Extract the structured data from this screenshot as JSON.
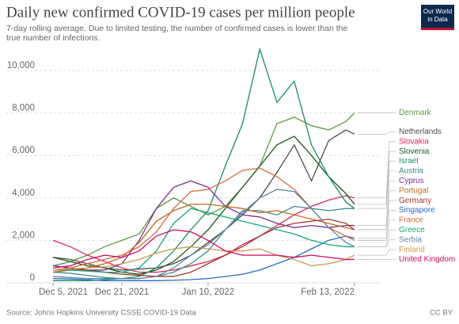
{
  "chart_data": {
    "type": "line",
    "title": "Daily new confirmed COVID-19 cases per million people",
    "subtitle": "7-day rolling average. Due to limited testing, the number of confirmed cases is lower than the true number of infections.",
    "source": "Source: Johns Hopkins University CSSE COVID-19 Data",
    "license": "CC BY",
    "logo": [
      "Our World",
      "in Data"
    ],
    "x": [
      "2021-12-05",
      "2021-12-09",
      "2021-12-13",
      "2021-12-17",
      "2021-12-21",
      "2021-12-25",
      "2021-12-29",
      "2022-01-02",
      "2022-01-06",
      "2022-01-10",
      "2022-01-14",
      "2022-01-18",
      "2022-01-22",
      "2022-01-26",
      "2022-01-30",
      "2022-02-03",
      "2022-02-07",
      "2022-02-11",
      "2022-02-13"
    ],
    "xticks": [
      {
        "value": "2021-12-05",
        "label": "Dec 5, 2021"
      },
      {
        "value": "2021-12-21",
        "label": "Dec 21, 2021"
      },
      {
        "value": "2022-01-10",
        "label": "Jan 10, 2022"
      },
      {
        "value": "2022-02-13",
        "label": "Feb 13, 2022"
      }
    ],
    "ylim": [
      0,
      10000
    ],
    "yticks": [
      0,
      {
        "value": 2000,
        "label": "2,000"
      },
      {
        "value": 4000,
        "label": "4,000"
      },
      {
        "value": 6000,
        "label": "6,000"
      },
      {
        "value": 8000,
        "label": "8,000"
      },
      {
        "value": 10000,
        "label": "10,000"
      }
    ],
    "grid": true,
    "series": [
      {
        "name": "Denmark",
        "color": "#5b9a3e",
        "values": [
          800,
          1000,
          1300,
          1700,
          2000,
          2300,
          3500,
          4000,
          3600,
          3200,
          3600,
          4500,
          5500,
          7500,
          7800,
          7400,
          7200,
          7600,
          8000
        ]
      },
      {
        "name": "Netherlands",
        "color": "#4d4d4d",
        "values": [
          1200,
          1100,
          900,
          700,
          600,
          650,
          700,
          900,
          1300,
          1900,
          2500,
          3200,
          4000,
          5200,
          6500,
          4800,
          6700,
          7200,
          7000
        ]
      },
      {
        "name": "Slovakia",
        "color": "#e0245b",
        "values": [
          2000,
          1700,
          1300,
          1000,
          700,
          500,
          500,
          600,
          800,
          1000,
          1300,
          1700,
          2200,
          2700,
          3200,
          3600,
          3900,
          4100,
          4000
        ]
      },
      {
        "name": "Slovenia",
        "color": "#1c5a1c",
        "values": [
          1200,
          1000,
          800,
          700,
          500,
          400,
          600,
          1000,
          1700,
          2500,
          3500,
          4500,
          5500,
          6500,
          6900,
          6000,
          5000,
          4200,
          3700
        ]
      },
      {
        "name": "Israel",
        "color": "#1a8a6e",
        "values": [
          100,
          100,
          100,
          150,
          200,
          300,
          700,
          1500,
          2500,
          3400,
          5500,
          7500,
          11000,
          8500,
          9500,
          6500,
          5000,
          3800,
          3500
        ]
      },
      {
        "name": "Austria",
        "color": "#3d8c8c",
        "values": [
          500,
          450,
          350,
          250,
          200,
          200,
          300,
          500,
          900,
          1500,
          2500,
          3400,
          3400,
          3200,
          3600,
          3500,
          3400,
          3500,
          3500
        ]
      },
      {
        "name": "Cyprus",
        "color": "#7b2d8e",
        "values": [
          800,
          700,
          600,
          600,
          900,
          2000,
          3500,
          4500,
          4800,
          4500,
          3600,
          3200,
          3100,
          2800,
          2600,
          2700,
          2600,
          2700,
          2700
        ]
      },
      {
        "name": "Portugal",
        "color": "#c4661f",
        "values": [
          500,
          600,
          700,
          900,
          1200,
          1900,
          2900,
          3400,
          3700,
          3700,
          3600,
          3500,
          3300,
          3400,
          3200,
          3000,
          2800,
          2600,
          2500
        ]
      },
      {
        "name": "Germany",
        "color": "#a2392b",
        "values": [
          600,
          650,
          600,
          500,
          400,
          350,
          300,
          300,
          500,
          900,
          1300,
          1800,
          2200,
          2600,
          2800,
          2900,
          3000,
          2800,
          2500
        ]
      },
      {
        "name": "Singapore",
        "color": "#286bbb",
        "values": [
          200,
          180,
          150,
          100,
          100,
          100,
          100,
          120,
          150,
          200,
          300,
          400,
          600,
          900,
          1200,
          1600,
          2000,
          2200,
          2100
        ]
      },
      {
        "name": "France",
        "color": "#d86a3c",
        "values": [
          600,
          700,
          900,
          1100,
          1300,
          1700,
          2400,
          3500,
          4300,
          4400,
          4800,
          5300,
          5400,
          5000,
          4400,
          3500,
          2600,
          2200,
          2000
        ]
      },
      {
        "name": "Greece",
        "color": "#18a57d",
        "values": [
          600,
          600,
          550,
          500,
          500,
          700,
          1500,
          2800,
          3500,
          3300,
          3100,
          2900,
          2700,
          2500,
          2300,
          2000,
          1800,
          1700,
          1700
        ]
      },
      {
        "name": "Serbia",
        "color": "#5d86a5",
        "values": [
          300,
          250,
          200,
          200,
          200,
          200,
          300,
          700,
          1300,
          1800,
          2500,
          3300,
          4000,
          4400,
          4300,
          3500,
          2600,
          1900,
          1700
        ]
      },
      {
        "name": "Finland",
        "color": "#c99a4e",
        "values": [
          600,
          650,
          700,
          750,
          900,
          1100,
          1400,
          1600,
          1700,
          1600,
          1500,
          1500,
          1600,
          1300,
          1100,
          800,
          900,
          1100,
          1300
        ]
      },
      {
        "name": "United Kingdom",
        "color": "#cf0a66",
        "values": [
          700,
          800,
          1100,
          1300,
          1200,
          1500,
          2200,
          2500,
          2400,
          2000,
          1500,
          1300,
          1300,
          1300,
          1200,
          1300,
          1200,
          1100,
          1100
        ]
      }
    ]
  }
}
